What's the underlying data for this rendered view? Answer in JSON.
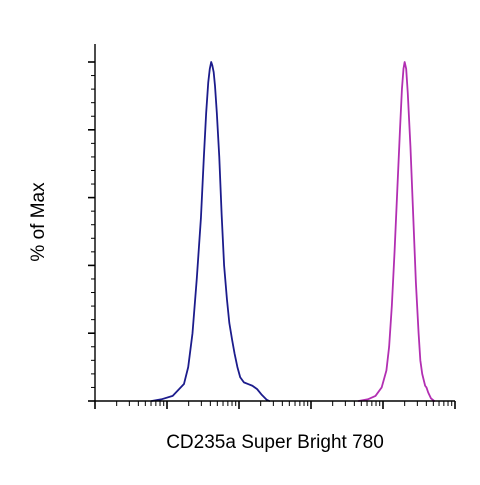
{
  "chart_data": {
    "type": "line",
    "title": "",
    "xlabel": "CD235a Super Bright 780",
    "ylabel": "% of Max",
    "x_scale": "log",
    "xlim": [
      10,
      1000000
    ],
    "ylim": [
      0,
      100
    ],
    "grid": false,
    "legend": "none",
    "series": [
      {
        "color": "#1c1c8c",
        "points": [
          [
            61.2,
            0
          ],
          [
            83.8,
            0.5
          ],
          [
            120,
            1.5
          ],
          [
            172,
            5
          ],
          [
            197,
            10
          ],
          [
            226,
            20
          ],
          [
            259,
            36
          ],
          [
            296,
            54
          ],
          [
            325,
            72
          ],
          [
            350,
            85
          ],
          [
            374,
            94
          ],
          [
            393,
            98
          ],
          [
            411,
            100
          ],
          [
            426,
            99
          ],
          [
            445,
            97
          ],
          [
            464,
            93
          ],
          [
            492,
            85
          ],
          [
            532,
            72
          ],
          [
            574,
            55
          ],
          [
            621,
            40
          ],
          [
            680,
            30
          ],
          [
            734,
            23
          ],
          [
            803,
            18
          ],
          [
            868,
            14
          ],
          [
            950,
            10
          ],
          [
            1039,
            7
          ],
          [
            1170,
            5.5
          ],
          [
            1340,
            5
          ],
          [
            1535,
            4.5
          ],
          [
            1785,
            3.5
          ],
          [
            2076,
            1.8
          ],
          [
            2413,
            0.4
          ],
          [
            2632,
            0
          ]
        ]
      },
      {
        "color": "#b22fb2",
        "points": [
          [
            45860,
            0
          ],
          [
            61690,
            0.5
          ],
          [
            78600,
            1.5
          ],
          [
            95870,
            4
          ],
          [
            111500,
            9
          ],
          [
            121600,
            16
          ],
          [
            132600,
            28
          ],
          [
            144700,
            44
          ],
          [
            157800,
            62
          ],
          [
            172100,
            80
          ],
          [
            183200,
            92
          ],
          [
            192500,
            98
          ],
          [
            199800,
            100
          ],
          [
            209900,
            98
          ],
          [
            220600,
            91
          ],
          [
            240600,
            75
          ],
          [
            262400,
            55
          ],
          [
            286200,
            35
          ],
          [
            312100,
            20
          ],
          [
            330000,
            12
          ],
          [
            350400,
            8
          ],
          [
            384800,
            4.5
          ],
          [
            401400,
            4
          ],
          [
            424400,
            2.5
          ],
          [
            462900,
            0.8
          ],
          [
            514000,
            0
          ]
        ]
      }
    ]
  }
}
